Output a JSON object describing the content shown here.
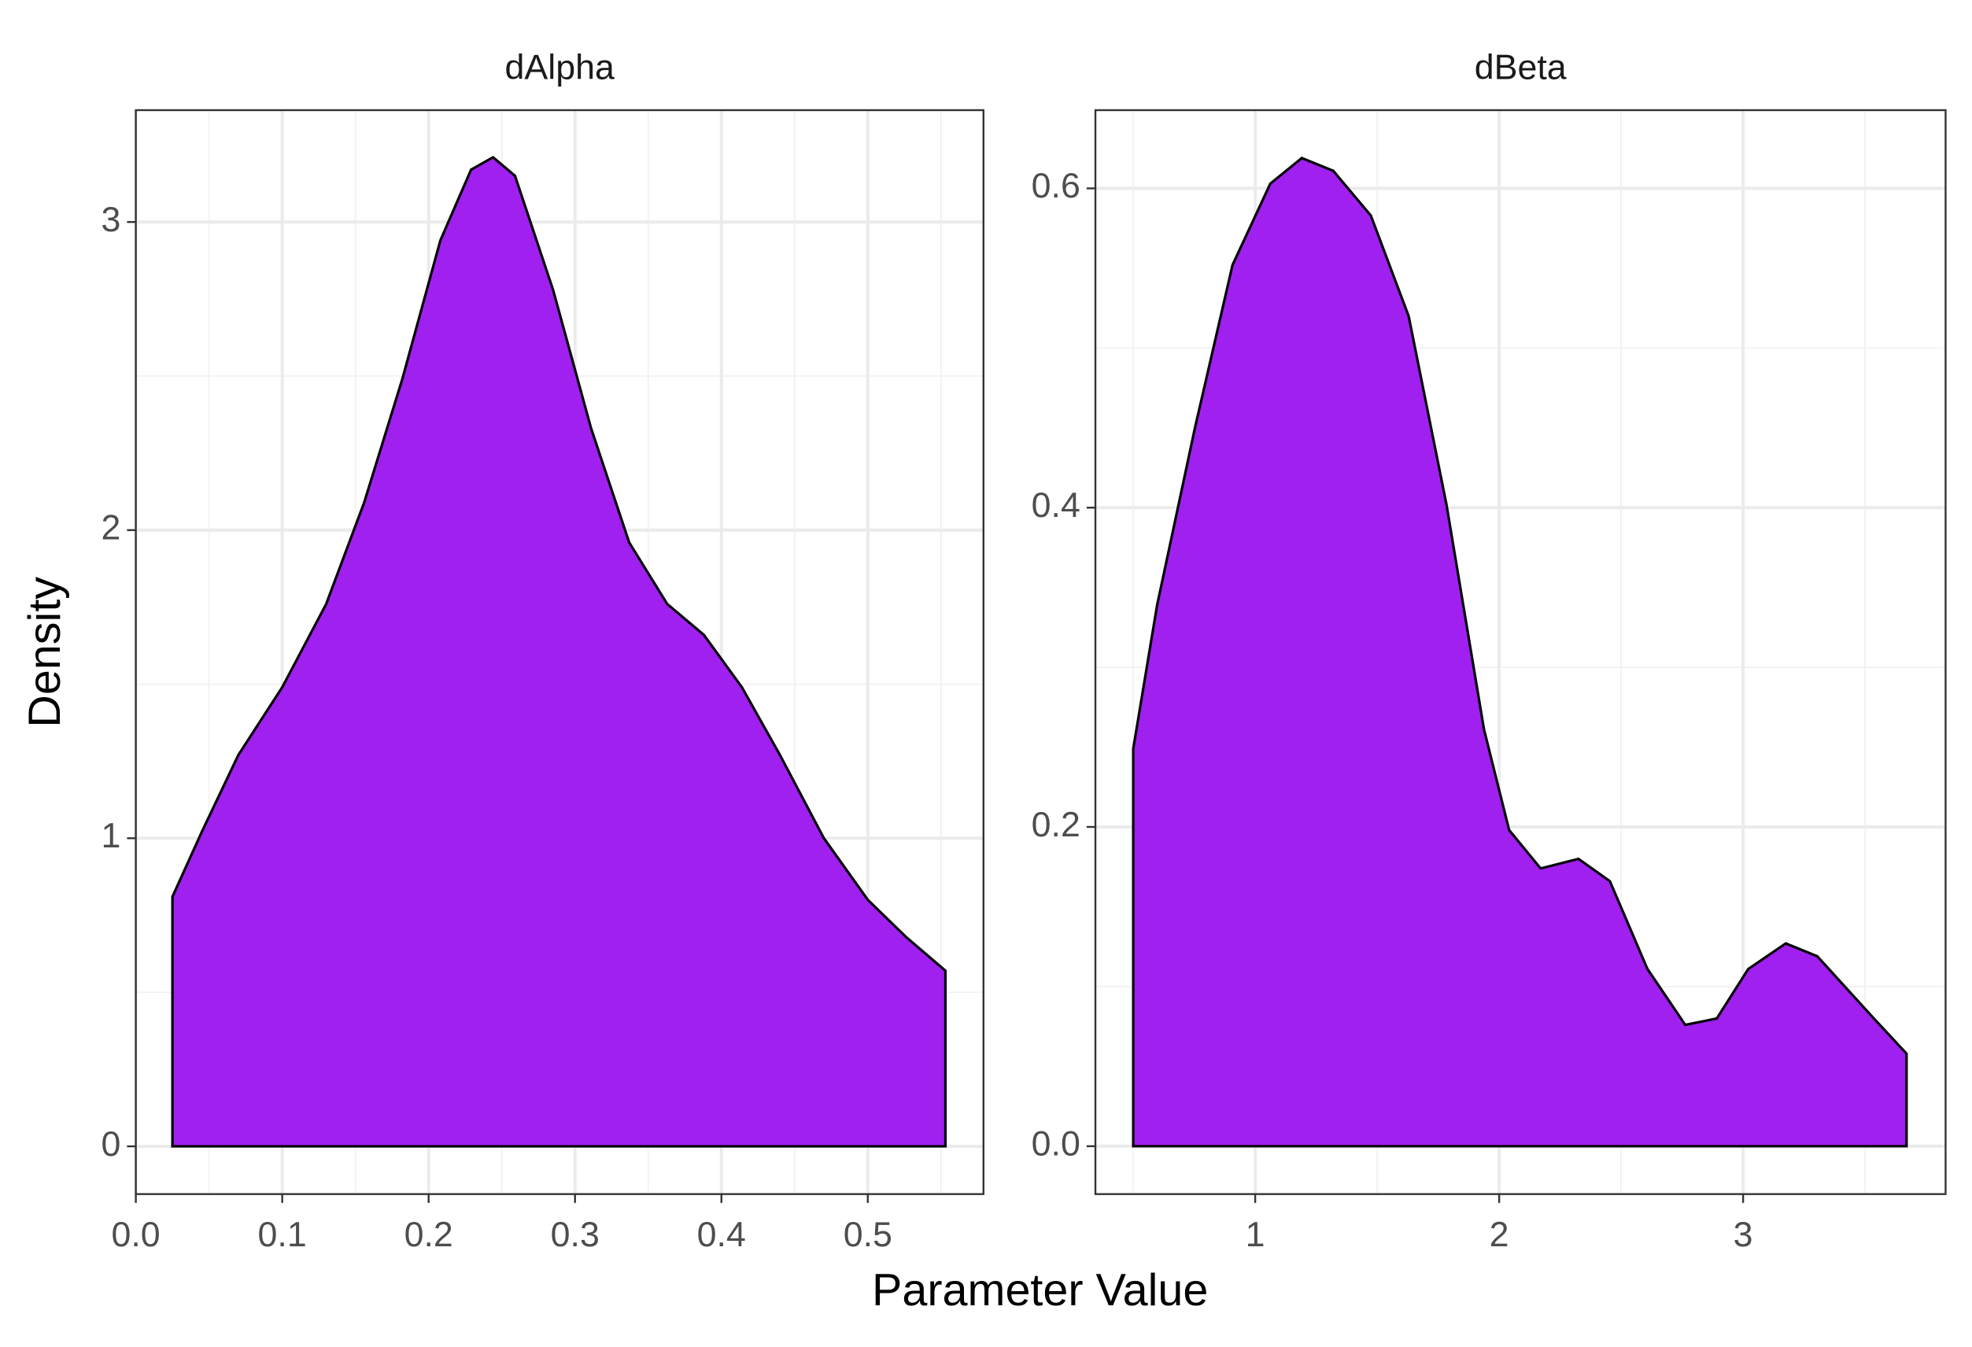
{
  "xlabel": "Parameter Value",
  "ylabel": "Density",
  "chart_data": [
    {
      "type": "area",
      "title": "dAlpha",
      "color": "#a020f0",
      "grid": true,
      "x": [
        0.025,
        0.045,
        0.07,
        0.1,
        0.13,
        0.156,
        0.182,
        0.208,
        0.229,
        0.244,
        0.259,
        0.285,
        0.311,
        0.337,
        0.363,
        0.388,
        0.414,
        0.44,
        0.47,
        0.5,
        0.526,
        0.553
      ],
      "values": [
        0.81,
        1.02,
        1.27,
        1.49,
        1.76,
        2.09,
        2.49,
        2.94,
        3.17,
        3.21,
        3.15,
        2.78,
        2.33,
        1.96,
        1.76,
        1.66,
        1.49,
        1.27,
        1.0,
        0.8,
        0.68,
        0.57
      ],
      "xlim": [
        0,
        0.579
      ],
      "ylim": [
        -0.155,
        3.363
      ],
      "xticks": [
        {
          "value": 0,
          "label": "0.0"
        },
        0.1,
        0.2,
        0.3,
        0.4,
        0.5
      ],
      "yticks": [
        0,
        1,
        2,
        3
      ]
    },
    {
      "type": "area",
      "title": "dBeta",
      "color": "#a020f0",
      "grid": true,
      "x": [
        0.5,
        0.598,
        0.753,
        0.907,
        1.062,
        1.191,
        1.32,
        1.474,
        1.629,
        1.784,
        1.938,
        2.041,
        2.17,
        2.325,
        2.454,
        2.608,
        2.763,
        2.892,
        3.021,
        3.175,
        3.304,
        3.536,
        3.67
      ],
      "values": [
        0.249,
        0.339,
        0.45,
        0.552,
        0.603,
        0.619,
        0.611,
        0.583,
        0.52,
        0.402,
        0.261,
        0.198,
        0.174,
        0.18,
        0.166,
        0.111,
        0.076,
        0.08,
        0.111,
        0.127,
        0.119,
        0.08,
        0.058
      ],
      "xlim": [
        0.345,
        3.83
      ],
      "ylim": [
        -0.03,
        0.649
      ],
      "xticks": [
        1,
        2,
        3
      ],
      "yticks": [
        {
          "value": 0,
          "label": "0.0"
        },
        0.2,
        0.4,
        0.6
      ]
    }
  ]
}
